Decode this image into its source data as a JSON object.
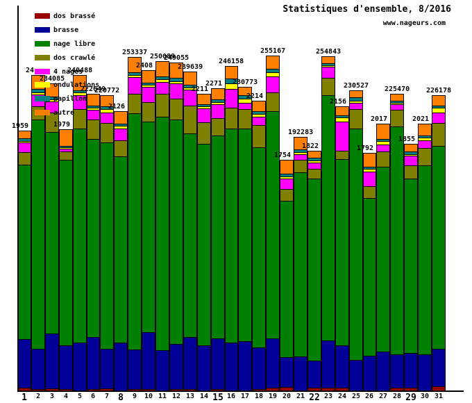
{
  "header": {
    "title": "Statistiques d'ensemble, 8/2016",
    "site": "www.nageurs.com"
  },
  "legend": {
    "items": [
      {
        "label": "dos brassé",
        "color": "#990000"
      },
      {
        "label": "brasse",
        "color": "#000099"
      },
      {
        "label": "nage libre",
        "color": "#008000"
      },
      {
        "label": "dos crawlé",
        "color": "#808000"
      },
      {
        "label": "4 nages",
        "color": "#FF00FF"
      },
      {
        "label": "ondulations",
        "color": "#FFFF00"
      },
      {
        "label": "papillon",
        "color": "#008080"
      },
      {
        "label": "autre",
        "color": "#FF8000"
      }
    ]
  },
  "chart_data": {
    "type": "bar",
    "stacked": true,
    "title": "Statistiques d'ensemble, 8/2016",
    "xlabel": "",
    "ylabel": "",
    "y_axis_ticks_visible": false,
    "legend_position": "top-left",
    "categories": [
      1,
      2,
      3,
      4,
      5,
      6,
      7,
      8,
      9,
      10,
      11,
      12,
      13,
      14,
      15,
      16,
      17,
      18,
      19,
      20,
      21,
      22,
      23,
      24,
      25,
      26,
      27,
      28,
      29,
      30,
      31
    ],
    "bold_categories": [
      1,
      8,
      15,
      22,
      29
    ],
    "series": [
      {
        "name": "dos brassé",
        "color": "#990000",
        "values": [
          2112,
          1056,
          1584,
          1056,
          0,
          1056,
          1584,
          0,
          1056,
          1056,
          0,
          1056,
          1056,
          0,
          1056,
          0,
          0,
          1056,
          2112,
          2640,
          0,
          2112,
          2112,
          2112,
          0,
          0,
          0,
          2112,
          2112,
          0,
          3168
        ]
      },
      {
        "name": "brasse",
        "color": "#000099",
        "values": [
          36960,
          30624,
          41712,
          33264,
          36432,
          39600,
          30096,
          36432,
          30096,
          43296,
          30624,
          34320,
          39600,
          34320,
          38544,
          36432,
          37488,
          31680,
          37488,
          22704,
          25872,
          20592,
          35904,
          32208,
          23232,
          26400,
          29568,
          25344,
          26400,
          27456,
          28512
        ]
      },
      {
        "name": "nage libre",
        "color": "#008000",
        "values": [
          132528,
          174240,
          153120,
          140976,
          162624,
          150480,
          156816,
          141504,
          179520,
          159984,
          177408,
          170544,
          154704,
          153120,
          154176,
          162624,
          161568,
          152064,
          172656,
          118800,
          139920,
          138336,
          186384,
          141504,
          175824,
          119856,
          140448,
          173184,
          132528,
          143616,
          154176
        ]
      },
      {
        "name": "dos crawlé",
        "color": "#808000",
        "values": [
          9504,
          10032,
          14784,
          6336,
          14784,
          14784,
          14784,
          12144,
          14784,
          14784,
          17424,
          15840,
          21120,
          16368,
          13200,
          15840,
          14784,
          16896,
          14256,
          8976,
          9504,
          7392,
          13200,
          6336,
          14784,
          8976,
          11616,
          12672,
          10032,
          13200,
          17424
        ]
      },
      {
        "name": "4 nages",
        "color": "#FF00FF",
        "values": [
          7392,
          8976,
          8448,
          2112,
          10560,
          7392,
          7920,
          8976,
          12672,
          11616,
          8976,
          11616,
          12144,
          10560,
          10560,
          14256,
          4752,
          6336,
          12144,
          7920,
          4224,
          4752,
          8448,
          22176,
          4752,
          11088,
          5280,
          4224,
          7392,
          5808,
          7920
        ]
      },
      {
        "name": "ondulations",
        "color": "#FFFF00",
        "values": [
          1056,
          1584,
          1584,
          1056,
          2112,
          1584,
          2640,
          2112,
          1584,
          1584,
          2112,
          1584,
          1584,
          1584,
          1584,
          4224,
          3168,
          2112,
          3168,
          1584,
          1584,
          1584,
          1056,
          3168,
          1584,
          2112,
          2640,
          1056,
          1056,
          2112,
          3696
        ]
      },
      {
        "name": "papillon",
        "color": "#008080",
        "values": [
          2112,
          2640,
          2112,
          1056,
          1584,
          1584,
          2112,
          1584,
          2112,
          1584,
          2112,
          2640,
          2112,
          1584,
          2112,
          3696,
          2640,
          2112,
          2640,
          2112,
          2112,
          2112,
          1584,
          1584,
          2640,
          1584,
          1584,
          1584,
          2112,
          1584,
          1584
        ]
      },
      {
        "name": "autre",
        "color": "#FF8000",
        "values": [
          5808,
          10560,
          10032,
          12672,
          11616,
          8976,
          8448,
          9504,
          11616,
          9504,
          11616,
          11616,
          10032,
          7920,
          8448,
          9504,
          6336,
          7920,
          10032,
          10560,
          9504,
          5280,
          5280,
          6864,
          5280,
          10560,
          11616,
          5280,
          5808,
          8976,
          7920
        ]
      }
    ],
    "bar_labels": [
      {
        "day": 1,
        "text": "1959",
        "truncated": true
      },
      {
        "day": 2,
        "text": "24",
        "truncated": true
      },
      {
        "day": 3,
        "text": "234085",
        "truncated": false
      },
      {
        "day": 4,
        "text": "1979",
        "truncated": true
      },
      {
        "day": 5,
        "text": "240488",
        "truncated": false
      },
      {
        "day": 6,
        "text": "222649",
        "truncated": false
      },
      {
        "day": 7,
        "text": "220772",
        "truncated": false
      },
      {
        "day": 8,
        "text": "2126",
        "truncated": true
      },
      {
        "day": 9,
        "text": "253337",
        "truncated": false
      },
      {
        "day": 10,
        "text": "2408",
        "truncated": true
      },
      {
        "day": 11,
        "text": "250089",
        "truncated": false
      },
      {
        "day": 12,
        "text": "249055",
        "truncated": false
      },
      {
        "day": 13,
        "text": "239639",
        "truncated": false
      },
      {
        "day": 14,
        "text": "2211",
        "truncated": true
      },
      {
        "day": 15,
        "text": "2271",
        "truncated": true
      },
      {
        "day": 16,
        "text": "246158",
        "truncated": false
      },
      {
        "day": 17,
        "text": "230773",
        "truncated": false
      },
      {
        "day": 18,
        "text": "2214",
        "truncated": true
      },
      {
        "day": 19,
        "text": "255167",
        "truncated": false
      },
      {
        "day": 20,
        "text": "1754",
        "truncated": true
      },
      {
        "day": 21,
        "text": "192283",
        "truncated": false
      },
      {
        "day": 22,
        "text": "1822",
        "truncated": true
      },
      {
        "day": 23,
        "text": "254843",
        "truncated": false
      },
      {
        "day": 24,
        "text": "2156",
        "truncated": true
      },
      {
        "day": 25,
        "text": "230527",
        "truncated": false
      },
      {
        "day": 26,
        "text": "1792",
        "truncated": true
      },
      {
        "day": 27,
        "text": "2017",
        "truncated": true
      },
      {
        "day": 28,
        "text": "225470",
        "truncated": false
      },
      {
        "day": 29,
        "text": "1855",
        "truncated": true
      },
      {
        "day": 30,
        "text": "2021",
        "truncated": true
      },
      {
        "day": 31,
        "text": "226178",
        "truncated": false
      }
    ]
  }
}
